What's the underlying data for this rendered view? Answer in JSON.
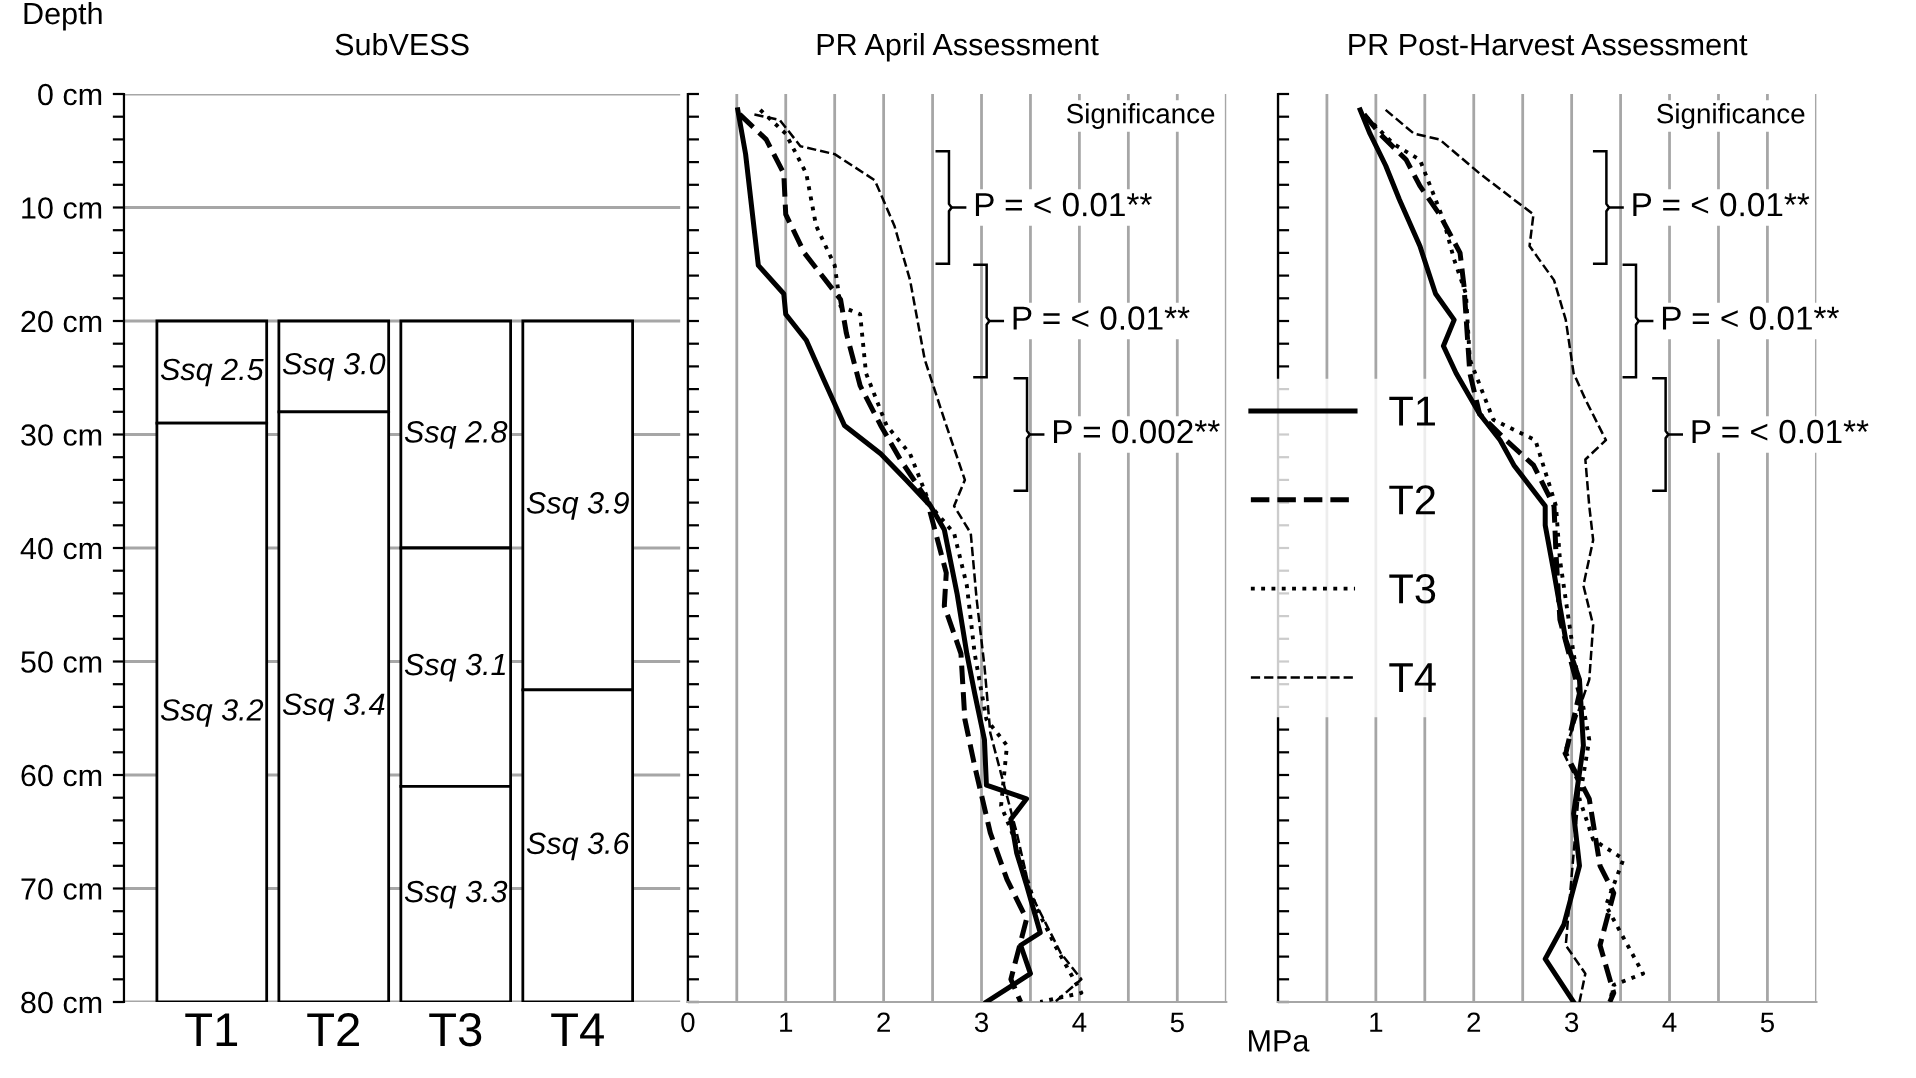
{
  "chart_data": [
    {
      "type": "bar",
      "title": "SubVESS",
      "ylabel": "Depth",
      "categories": [
        "T1",
        "T2",
        "T3",
        "T4"
      ],
      "ylim": [
        80,
        0
      ],
      "yticks": [
        {
          "value": 0,
          "label": "0 cm"
        },
        {
          "value": 10,
          "label": "10 cm"
        },
        {
          "value": 20,
          "label": "20 cm"
        },
        {
          "value": 30,
          "label": "30 cm"
        },
        {
          "value": 40,
          "label": "40 cm"
        },
        {
          "value": 50,
          "label": "50 cm"
        },
        {
          "value": 60,
          "label": "60 cm"
        },
        {
          "value": 70,
          "label": "70 cm"
        },
        {
          "value": 80,
          "label": "80 cm"
        }
      ],
      "grid": "y",
      "series": [
        {
          "color": "#ffffff",
          "base": [
            20,
            20,
            20,
            20
          ],
          "values": [
            9,
            8,
            20,
            32.5
          ],
          "value_labels": [
            "Ssq 2.5",
            "Ssq 3.0",
            "Ssq 2.8",
            "Ssq 3.9"
          ]
        },
        {
          "color": "#ffffff",
          "base": [
            29,
            28,
            40,
            52.5
          ],
          "values": [
            51,
            52,
            21,
            27.5
          ],
          "value_labels": [
            "Ssq 3.2",
            "Ssq 3.4",
            "Ssq 3.1",
            "Ssq 3.6"
          ]
        },
        {
          "color": "#ffffff",
          "base": [
            null,
            null,
            61,
            null
          ],
          "values": [
            null,
            null,
            19,
            null
          ],
          "value_labels": [
            null,
            null,
            "Ssq 3.3",
            null
          ]
        }
      ]
    },
    {
      "type": "line",
      "title": "PR April Assessment",
      "xlim": [
        0,
        5.5
      ],
      "ylim": [
        80,
        0
      ],
      "xticks": [
        0,
        {
          "value": 0.5,
          "label": null
        },
        1,
        {
          "value": 1.5,
          "label": null
        },
        2,
        {
          "value": 2.5,
          "label": null
        },
        3,
        {
          "value": 3.5,
          "label": null
        },
        4,
        {
          "value": 4.5,
          "label": null
        },
        5,
        {
          "value": 5.5,
          "label": null
        }
      ],
      "yticks": [
        {
          "value": 0,
          "label": null
        },
        {
          "value": 10,
          "label": null
        },
        {
          "value": 20,
          "label": null
        },
        {
          "value": 30,
          "label": null
        },
        {
          "value": 40,
          "label": null
        },
        {
          "value": 50,
          "label": null
        },
        {
          "value": 60,
          "label": null
        },
        {
          "value": 70,
          "label": null
        },
        {
          "value": 80,
          "label": null
        }
      ],
      "grid": "x",
      "tick_labels": "x",
      "annotations": [
        "Significance",
        "P = < 0.01**",
        "P = < 0.01**",
        "P = 0.002**"
      ],
      "series": [
        {
          "color": "#000000",
          "line_style": "solid",
          "x": [
            0.51,
            0.59,
            0.72,
            0.98,
            1.0,
            1.21,
            1.39,
            1.6,
            1.97,
            2.23,
            2.48,
            2.62,
            2.68,
            2.75,
            2.85,
            2.93,
            3.03,
            3.05,
            3.46,
            3.3,
            3.36,
            3.46,
            3.6,
            3.4,
            3.5,
            3.05
          ],
          "values": [
            1.4,
            5.3,
            15.1,
            17.6,
            19.4,
            21.7,
            25.2,
            29.2,
            31.7,
            34,
            36.3,
            38.4,
            41,
            44,
            49.3,
            52.8,
            56.9,
            60.9,
            62.1,
            63.9,
            66.9,
            69.7,
            73.9,
            75,
            77.5,
            80
          ]
        },
        {
          "color": "#000000",
          "line_style": "dashed",
          "x": [
            0.53,
            0.8,
            0.98,
            1.0,
            1.19,
            1.56,
            1.62,
            1.76,
            1.97,
            2.17,
            2.44,
            2.64,
            2.62,
            2.79,
            2.83,
            2.93,
            3.09,
            3.26,
            3.46,
            3.3,
            3.4
          ],
          "values": [
            1.8,
            4,
            7,
            10.6,
            14,
            18.1,
            21.1,
            25.7,
            29.2,
            32.2,
            35.7,
            42.2,
            45.1,
            49.3,
            55.1,
            59.2,
            65.1,
            69.2,
            72.7,
            78,
            80
          ]
        },
        {
          "color": "#000000",
          "line_style": "dotted",
          "x": [
            0.74,
            1.0,
            1.21,
            1.31,
            1.5,
            1.56,
            1.76,
            1.82,
            2.03,
            2.27,
            2.48,
            2.72,
            2.85,
            2.93,
            3.05,
            3.26,
            3.2,
            3.34,
            3.55,
            3.75,
            4.02,
            3.6
          ],
          "values": [
            1.4,
            3.5,
            7,
            11.6,
            15.1,
            18.7,
            19.4,
            24.6,
            29.2,
            31.7,
            36.3,
            38.7,
            43.3,
            49.3,
            55.1,
            57.4,
            62.7,
            65.7,
            71.5,
            75,
            79.2,
            80
          ]
        },
        {
          "color": "#000000",
          "line_style": "dashed",
          "x": [
            0.68,
            0.94,
            1.15,
            1.5,
            1.91,
            2.11,
            2.27,
            2.42,
            2.64,
            2.83,
            2.72,
            2.89,
            2.95,
            3.03,
            3.09,
            3.2,
            3.36,
            3.5,
            3.81,
            4.02,
            3.75
          ],
          "values": [
            1.8,
            2.3,
            4.6,
            5.3,
            7.6,
            11.6,
            16.4,
            23.4,
            29.2,
            34,
            36.3,
            38.7,
            44.5,
            50.4,
            56.3,
            59.9,
            65.1,
            70.4,
            75.7,
            78,
            80
          ]
        }
      ]
    },
    {
      "type": "line",
      "title": "PR Post-Harvest Assessment",
      "xlabel": "MPa",
      "xlim": [
        0,
        5.5
      ],
      "ylim": [
        80,
        0
      ],
      "xticks": [
        {
          "value": 0,
          "label": null
        },
        {
          "value": 0.5,
          "label": null
        },
        1,
        {
          "value": 1.5,
          "label": null
        },
        2,
        {
          "value": 2.5,
          "label": null
        },
        3,
        {
          "value": 3.5,
          "label": null
        },
        4,
        {
          "value": 4.5,
          "label": null
        },
        5,
        {
          "value": 5.5,
          "label": null
        }
      ],
      "yticks": [
        {
          "value": 0,
          "label": null
        },
        {
          "value": 10,
          "label": null
        },
        {
          "value": 20,
          "label": null
        },
        {
          "value": 30,
          "label": null
        },
        {
          "value": 40,
          "label": null
        },
        {
          "value": 50,
          "label": null
        },
        {
          "value": 60,
          "label": null
        },
        {
          "value": 70,
          "label": null
        },
        {
          "value": 80,
          "label": null
        }
      ],
      "grid": "x",
      "tick_labels": "x",
      "legend": "left",
      "annotations": [
        "Significance",
        "P = < 0.01**",
        "P = < 0.01**",
        "P = < 0.01**"
      ],
      "series": [
        {
          "name": "T1",
          "color": "#000000",
          "line_style": "solid",
          "x": [
            0.84,
            0.94,
            1.1,
            1.24,
            1.45,
            1.61,
            1.8,
            1.69,
            1.82,
            2.06,
            2.27,
            2.41,
            2.73,
            2.73,
            2.82,
            2.94,
            3.08,
            3.12,
            3.02,
            3.08,
            2.92,
            2.73,
            3.02
          ],
          "values": [
            1.4,
            3.5,
            6.3,
            9.3,
            13.4,
            17.6,
            19.9,
            22.2,
            24.6,
            28.2,
            30.5,
            32.7,
            36.3,
            38,
            42.2,
            48.1,
            51.6,
            57.4,
            63.4,
            68,
            73.2,
            76.2,
            80
          ]
        },
        {
          "name": "T2",
          "color": "#000000",
          "line_style": "dashed",
          "x": [
            0.88,
            1.04,
            1.31,
            1.45,
            1.65,
            1.86,
            1.9,
            1.96,
            2.06,
            2.33,
            2.61,
            2.82,
            2.84,
            2.88,
            3.08,
            2.94,
            3.18,
            3.29,
            3.43,
            3.29,
            3.43,
            3.39
          ],
          "values": [
            1.8,
            3.5,
            5.8,
            8.1,
            10.6,
            14,
            16.9,
            24.6,
            28.2,
            30.5,
            32.7,
            36.3,
            40.5,
            46.3,
            52.8,
            58.1,
            62.1,
            68,
            70.4,
            75,
            79.2,
            80
          ]
        },
        {
          "name": "T3",
          "color": "#000000",
          "line_style": "dotted",
          "x": [
            0.9,
            1.18,
            1.45,
            1.61,
            1.69,
            1.8,
            1.92,
            1.96,
            2.2,
            2.63,
            2.84,
            2.88,
            3.02,
            3.18,
            3.08,
            3.22,
            3.53,
            3.35,
            3.73,
            3.43,
            3.39
          ],
          "values": [
            2,
            4.4,
            5.8,
            9.3,
            11.1,
            14.6,
            17.6,
            23.4,
            28.7,
            30.5,
            36.3,
            41,
            49.3,
            56.9,
            62.1,
            65.7,
            67.4,
            71.5,
            77.5,
            78.5,
            80
          ]
        },
        {
          "name": "T4",
          "color": "#000000",
          "line_style": "dashed",
          "x": [
            1.1,
            1.39,
            1.65,
            2.06,
            2.41,
            2.61,
            2.57,
            2.82,
            2.94,
            3.02,
            3.14,
            3.35,
            3.14,
            3.18,
            3.22,
            3.12,
            3.22,
            3.18,
            2.92,
            3.08,
            3.02,
            2.94,
            3.14,
            3.08
          ],
          "values": [
            1.4,
            3.5,
            4,
            7,
            9.3,
            10.6,
            13.4,
            16.4,
            19.9,
            24.6,
            26.9,
            30.5,
            32.2,
            36.3,
            39.3,
            43.3,
            46.8,
            51.6,
            58.1,
            60.9,
            66.9,
            75,
            77.5,
            80
          ]
        }
      ]
    }
  ]
}
